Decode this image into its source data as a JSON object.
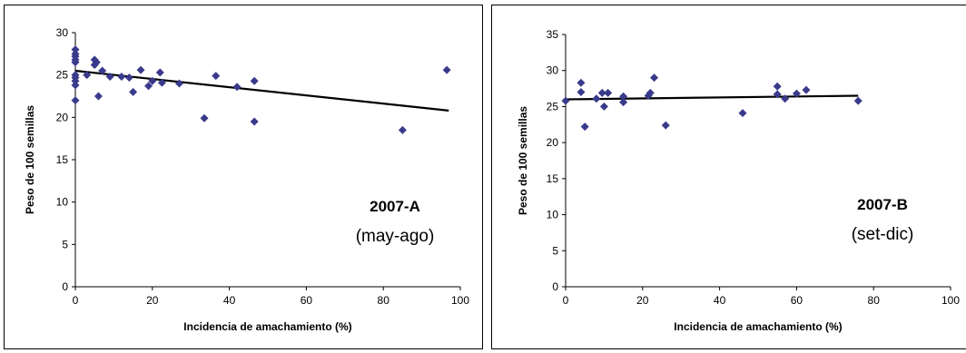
{
  "chart_data": [
    {
      "type": "scatter",
      "title": "",
      "xlabel": "Incidencia de amachamiento (%)",
      "ylabel": "Peso de 100 semillas",
      "xlim": [
        0,
        100
      ],
      "ylim": [
        0,
        30
      ],
      "xticks": [
        "0",
        "20",
        "40",
        "60",
        "80",
        "100"
      ],
      "yticks": [
        "0",
        "5",
        "10",
        "15",
        "20",
        "25",
        "30"
      ],
      "annotation": [
        "2007-A",
        "(may-ago)"
      ],
      "marker_color": "#3a3a8c",
      "points": [
        [
          0,
          28.0
        ],
        [
          0,
          27.5
        ],
        [
          0,
          27.2
        ],
        [
          0,
          26.8
        ],
        [
          0,
          26.5
        ],
        [
          0,
          25.0
        ],
        [
          0,
          24.7
        ],
        [
          0,
          24.3
        ],
        [
          0,
          23.8
        ],
        [
          0,
          22.0
        ],
        [
          3,
          25.0
        ],
        [
          5,
          26.2
        ],
        [
          5,
          26.8
        ],
        [
          5.5,
          26.5
        ],
        [
          6,
          22.5
        ],
        [
          7,
          25.5
        ],
        [
          9,
          24.8
        ],
        [
          12,
          24.8
        ],
        [
          14,
          24.7
        ],
        [
          15,
          23.0
        ],
        [
          17,
          25.6
        ],
        [
          19,
          23.7
        ],
        [
          20,
          24.3
        ],
        [
          22,
          25.3
        ],
        [
          22.5,
          24.1
        ],
        [
          27,
          24.0
        ],
        [
          33.5,
          19.9
        ],
        [
          36.5,
          24.9
        ],
        [
          42,
          23.6
        ],
        [
          46.5,
          24.3
        ],
        [
          46.5,
          19.5
        ],
        [
          85,
          18.5
        ],
        [
          96.5,
          25.6
        ]
      ],
      "trendline": [
        [
          0,
          25.5
        ],
        [
          97,
          20.8
        ]
      ]
    },
    {
      "type": "scatter",
      "title": "",
      "xlabel": "Incidencia de amachamiento (%)",
      "ylabel": "Peso de 100 semillas",
      "xlim": [
        0,
        100
      ],
      "ylim": [
        0,
        35
      ],
      "xticks": [
        "0",
        "20",
        "40",
        "60",
        "80",
        "100"
      ],
      "yticks": [
        "0",
        "5",
        "10",
        "15",
        "20",
        "25",
        "30",
        "35"
      ],
      "annotation": [
        "2007-B",
        "(set-dic)"
      ],
      "marker_color": "#3a3a8c",
      "points": [
        [
          0,
          25.8
        ],
        [
          4,
          28.3
        ],
        [
          4,
          27.0
        ],
        [
          5,
          22.2
        ],
        [
          8,
          26.1
        ],
        [
          9.5,
          26.9
        ],
        [
          10,
          25.0
        ],
        [
          11,
          26.9
        ],
        [
          15,
          25.6
        ],
        [
          15,
          26.4
        ],
        [
          21.5,
          26.5
        ],
        [
          22,
          26.9
        ],
        [
          23,
          29.0
        ],
        [
          26,
          22.4
        ],
        [
          46,
          24.1
        ],
        [
          55,
          27.8
        ],
        [
          55,
          26.7
        ],
        [
          57,
          26.1
        ],
        [
          60,
          26.8
        ],
        [
          62.5,
          27.3
        ],
        [
          76,
          25.8
        ]
      ],
      "trendline": [
        [
          0,
          26.0
        ],
        [
          76,
          26.5
        ]
      ]
    }
  ]
}
